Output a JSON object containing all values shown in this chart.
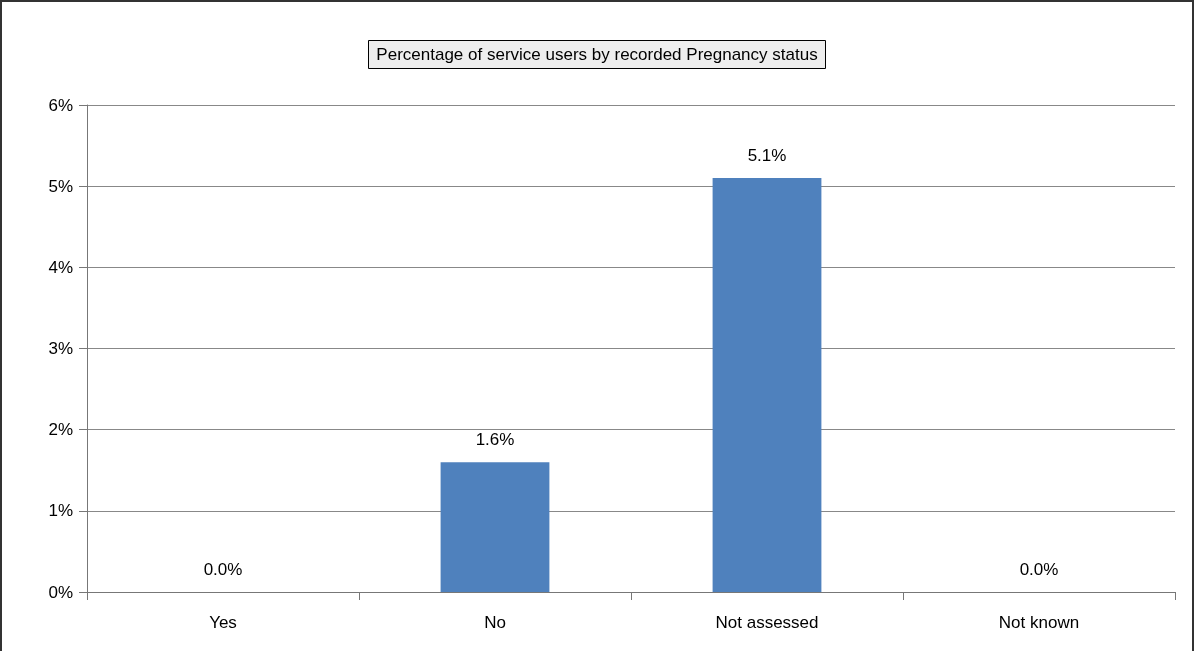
{
  "chart_data": {
    "type": "bar",
    "title": "Percentage of service users by recorded Pregnancy status",
    "categories": [
      "Yes",
      "No",
      "Not assessed",
      "Not known"
    ],
    "values": [
      0.0,
      1.6,
      5.1,
      0.0
    ],
    "color": "#4f81bd",
    "value_labels": [
      "0.0%",
      "1.6%",
      "5.1%",
      "0.0%"
    ],
    "ylim": [
      0,
      6
    ],
    "yticks": [
      {
        "value": 0,
        "label": "0%"
      },
      {
        "value": 1,
        "label": "1%"
      },
      {
        "value": 2,
        "label": "2%"
      },
      {
        "value": 3,
        "label": "3%"
      },
      {
        "value": 4,
        "label": "4%"
      },
      {
        "value": 5,
        "label": "5%"
      },
      {
        "value": 6,
        "label": "6%"
      }
    ],
    "grid": "y"
  }
}
